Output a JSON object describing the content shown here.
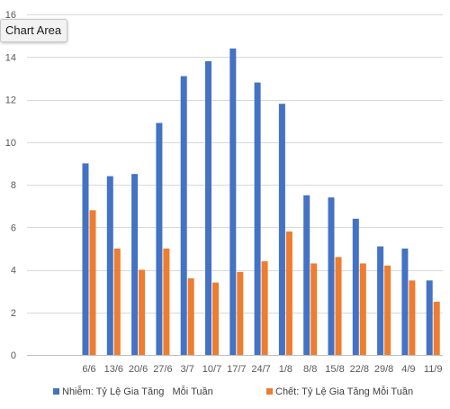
{
  "tooltip": {
    "label": "Chart Area"
  },
  "colors": {
    "infected": "#4472C4",
    "deaths": "#ED7D31",
    "grid": "#d9d9d9",
    "axis_text": "#595959"
  },
  "chart_data": {
    "type": "bar",
    "title": "",
    "xlabel": "",
    "ylabel": "",
    "ylim": [
      0,
      16
    ],
    "yticks": [
      0,
      2,
      4,
      6,
      8,
      10,
      12,
      14,
      16
    ],
    "grid": true,
    "legend_position": "bottom",
    "categories": [
      "6/6",
      "13/6",
      "20/6",
      "27/6",
      "3/7",
      "10/7",
      "17/7",
      "24/7",
      "1/8",
      "8/8",
      "15/8",
      "22/8",
      "29/8",
      "4/9",
      "11/9"
    ],
    "series": [
      {
        "name": "Nhiễm: Tỷ Lệ Gia Tăng   Mỗi Tuần",
        "color": "#4472C4",
        "values": [
          9.0,
          8.4,
          8.5,
          10.9,
          13.1,
          13.8,
          14.4,
          12.8,
          11.8,
          7.5,
          7.4,
          6.4,
          5.1,
          5.0,
          3.5
        ]
      },
      {
        "name": "Chết: Tỷ Lệ Gia Tăng Mỗi Tuần",
        "color": "#ED7D31",
        "values": [
          6.8,
          5.0,
          4.0,
          5.0,
          3.6,
          3.4,
          3.9,
          4.4,
          5.8,
          4.3,
          4.6,
          4.3,
          4.2,
          3.5,
          2.5
        ]
      }
    ]
  }
}
